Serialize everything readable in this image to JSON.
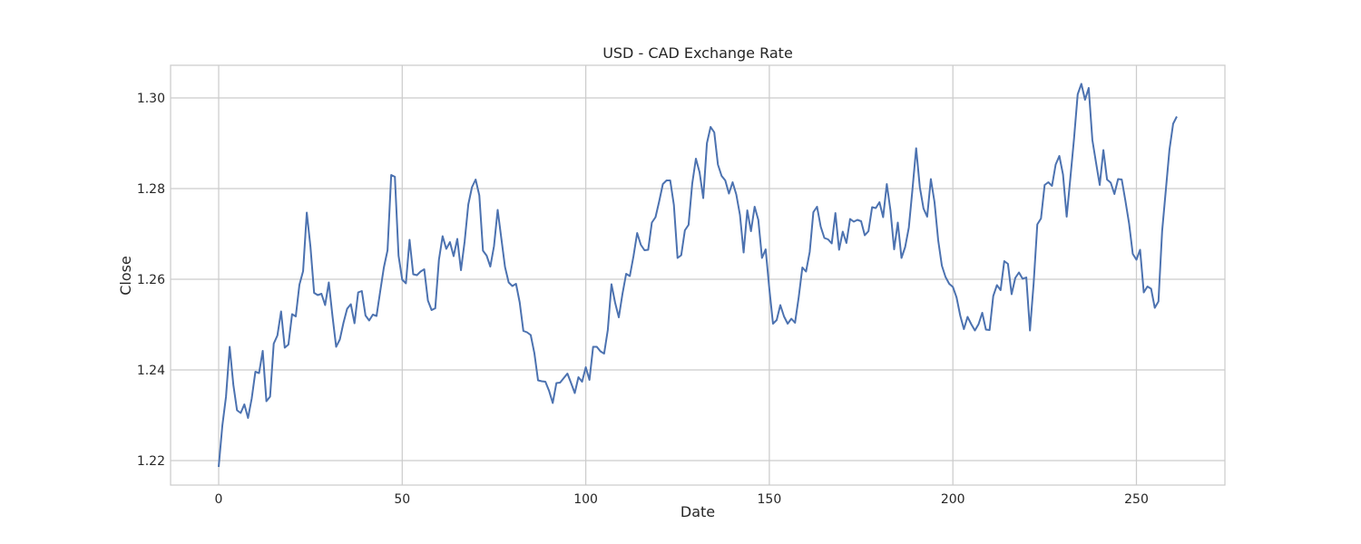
{
  "chart_data": {
    "type": "line",
    "title": "USD - CAD Exchange Rate",
    "xlabel": "Date",
    "ylabel": "Close",
    "xlim": [
      -13.1,
      274.1
    ],
    "ylim": [
      1.2146,
      1.3072
    ],
    "xticks": [
      0,
      50,
      100,
      150,
      200,
      250
    ],
    "yticks": [
      1.22,
      1.24,
      1.26,
      1.28,
      1.3
    ],
    "ytick_labels": [
      "1.22",
      "1.24",
      "1.26",
      "1.28",
      "1.30"
    ],
    "grid": true,
    "line_color": "#4c72b0",
    "series": [
      {
        "values": [
          1.2186,
          1.2277,
          1.2341,
          1.2451,
          1.2367,
          1.2311,
          1.2305,
          1.2324,
          1.2294,
          1.2337,
          1.2396,
          1.2393,
          1.2442,
          1.2331,
          1.2341,
          1.2458,
          1.2476,
          1.2529,
          1.2449,
          1.2456,
          1.2523,
          1.2518,
          1.2588,
          1.2618,
          1.2747,
          1.2672,
          1.257,
          1.2565,
          1.2568,
          1.2543,
          1.2593,
          1.2519,
          1.2451,
          1.2467,
          1.2504,
          1.2535,
          1.2545,
          1.2503,
          1.2571,
          1.2574,
          1.252,
          1.2509,
          1.2522,
          1.2519,
          1.2573,
          1.2626,
          1.2664,
          1.283,
          1.2826,
          1.2652,
          1.2599,
          1.2591,
          1.2687,
          1.2611,
          1.2609,
          1.2617,
          1.2622,
          1.2553,
          1.2532,
          1.2536,
          1.2643,
          1.2695,
          1.2667,
          1.2682,
          1.2651,
          1.2689,
          1.262,
          1.2683,
          1.2765,
          1.2803,
          1.282,
          1.2785,
          1.2663,
          1.2652,
          1.2628,
          1.2673,
          1.2753,
          1.269,
          1.2627,
          1.2593,
          1.2585,
          1.259,
          1.2549,
          1.2486,
          1.2483,
          1.2477,
          1.2437,
          1.2377,
          1.2375,
          1.2374,
          1.2354,
          1.2327,
          1.2371,
          1.2372,
          1.2382,
          1.2392,
          1.2371,
          1.2349,
          1.2384,
          1.2374,
          1.2406,
          1.2378,
          1.2451,
          1.2451,
          1.2441,
          1.2436,
          1.2488,
          1.2589,
          1.2548,
          1.2516,
          1.2568,
          1.2612,
          1.2607,
          1.2651,
          1.2702,
          1.2676,
          1.2664,
          1.2665,
          1.2725,
          1.2737,
          1.2772,
          1.281,
          1.2818,
          1.2818,
          1.2764,
          1.2647,
          1.2653,
          1.2708,
          1.272,
          1.2811,
          1.2866,
          1.2836,
          1.2779,
          1.29,
          1.2936,
          1.2924,
          1.2853,
          1.2828,
          1.2818,
          1.2789,
          1.2814,
          1.2787,
          1.2742,
          1.2659,
          1.2752,
          1.2706,
          1.276,
          1.2731,
          1.2647,
          1.2666,
          1.2579,
          1.2502,
          1.251,
          1.2543,
          1.2518,
          1.2502,
          1.2513,
          1.2504,
          1.256,
          1.2626,
          1.2617,
          1.266,
          1.2748,
          1.276,
          1.2716,
          1.2691,
          1.2688,
          1.2679,
          1.2746,
          1.2665,
          1.2705,
          1.268,
          1.2733,
          1.2727,
          1.2731,
          1.2728,
          1.2697,
          1.2706,
          1.2759,
          1.2757,
          1.277,
          1.2737,
          1.281,
          1.2752,
          1.2666,
          1.2725,
          1.2647,
          1.2671,
          1.2714,
          1.2799,
          1.2889,
          1.2803,
          1.2756,
          1.2738,
          1.2821,
          1.277,
          1.2686,
          1.263,
          1.2605,
          1.259,
          1.2583,
          1.256,
          1.252,
          1.249,
          1.2517,
          1.2501,
          1.2487,
          1.2501,
          1.2526,
          1.2489,
          1.2488,
          1.2563,
          1.2587,
          1.2576,
          1.264,
          1.2634,
          1.2567,
          1.2603,
          1.2615,
          1.2601,
          1.2604,
          1.2487,
          1.2591,
          1.2721,
          1.2734,
          1.2808,
          1.2814,
          1.2806,
          1.2853,
          1.2872,
          1.2831,
          1.2738,
          1.2823,
          1.291,
          1.3008,
          1.3031,
          1.2996,
          1.3022,
          1.2907,
          1.2857,
          1.2808,
          1.2885,
          1.282,
          1.2813,
          1.2788,
          1.2821,
          1.282,
          1.2773,
          1.2723,
          1.2656,
          1.2643,
          1.2665,
          1.2571,
          1.2584,
          1.2579,
          1.2537,
          1.2551,
          1.2706,
          1.2796,
          1.2886,
          1.2943,
          1.2959
        ]
      }
    ]
  }
}
